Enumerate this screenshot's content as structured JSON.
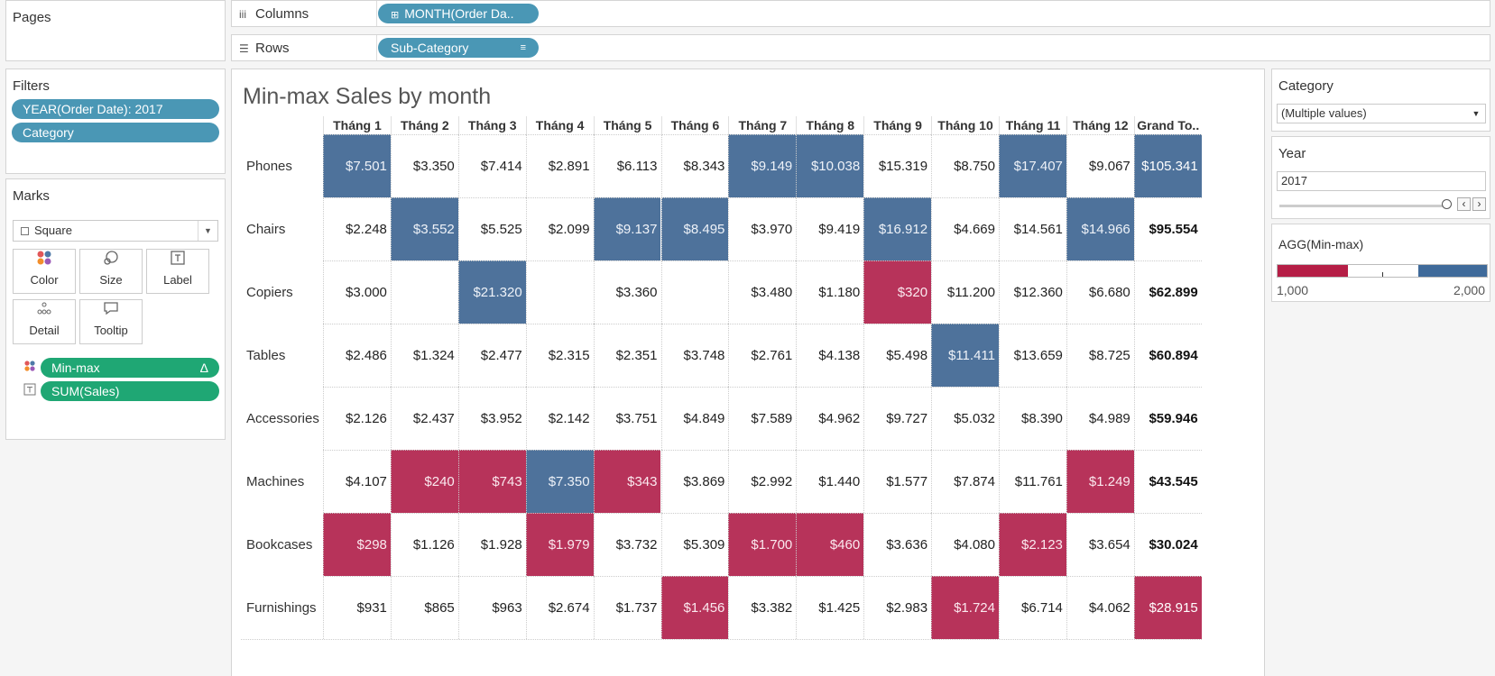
{
  "pages": {
    "title": "Pages"
  },
  "filters": {
    "title": "Filters",
    "pills": [
      "YEAR(Order Date): 2017",
      "Category"
    ]
  },
  "marks": {
    "title": "Marks",
    "mark_type": "Square",
    "buttons": {
      "color": "Color",
      "size": "Size",
      "label": "Label",
      "detail": "Detail",
      "tooltip": "Tooltip"
    },
    "fields": [
      "Min-max",
      "SUM(Sales)"
    ],
    "delta": "Δ"
  },
  "shelves": {
    "columns_label": "Columns",
    "columns_pill": "MONTH(Order Da..",
    "rows_label": "Rows",
    "rows_pill": "Sub-Category"
  },
  "view": {
    "title": "Min-max Sales by month",
    "columns": [
      "Tháng 1",
      "Tháng 2",
      "Tháng 3",
      "Tháng 4",
      "Tháng 5",
      "Tháng 6",
      "Tháng 7",
      "Tháng 8",
      "Tháng 9",
      "Tháng 10",
      "Tháng 11",
      "Tháng 12",
      "Grand To.."
    ],
    "rows": [
      {
        "label": "Phones",
        "values": [
          "$7.501",
          "$3.350",
          "$7.414",
          "$2.891",
          "$6.113",
          "$8.343",
          "$9.149",
          "$10.038",
          "$15.319",
          "$8.750",
          "$17.407",
          "$9.067",
          "$105.341"
        ],
        "status": [
          "max",
          "",
          "",
          "",
          "",
          "",
          "max",
          "max",
          "",
          "",
          "max",
          "",
          "max"
        ]
      },
      {
        "label": "Chairs",
        "values": [
          "$2.248",
          "$3.552",
          "$5.525",
          "$2.099",
          "$9.137",
          "$8.495",
          "$3.970",
          "$9.419",
          "$16.912",
          "$4.669",
          "$14.561",
          "$14.966",
          "$95.554"
        ],
        "status": [
          "",
          "max",
          "",
          "",
          "max",
          "max",
          "",
          "",
          "max",
          "",
          "",
          "max",
          ""
        ]
      },
      {
        "label": "Copiers",
        "values": [
          "$3.000",
          "",
          "$21.320",
          "",
          "$3.360",
          "",
          "$3.480",
          "$1.180",
          "$320",
          "$11.200",
          "$12.360",
          "$6.680",
          "$62.899"
        ],
        "status": [
          "",
          "",
          "max",
          "",
          "",
          "",
          "",
          "",
          "min",
          "",
          "",
          "",
          ""
        ]
      },
      {
        "label": "Tables",
        "values": [
          "$2.486",
          "$1.324",
          "$2.477",
          "$2.315",
          "$2.351",
          "$3.748",
          "$2.761",
          "$4.138",
          "$5.498",
          "$11.411",
          "$13.659",
          "$8.725",
          "$60.894"
        ],
        "status": [
          "",
          "",
          "",
          "",
          "",
          "",
          "",
          "",
          "",
          "max",
          "",
          "",
          ""
        ]
      },
      {
        "label": "Accessories",
        "values": [
          "$2.126",
          "$2.437",
          "$3.952",
          "$2.142",
          "$3.751",
          "$4.849",
          "$7.589",
          "$4.962",
          "$9.727",
          "$5.032",
          "$8.390",
          "$4.989",
          "$59.946"
        ],
        "status": [
          "",
          "",
          "",
          "",
          "",
          "",
          "",
          "",
          "",
          "",
          "",
          "",
          ""
        ]
      },
      {
        "label": "Machines",
        "values": [
          "$4.107",
          "$240",
          "$743",
          "$7.350",
          "$343",
          "$3.869",
          "$2.992",
          "$1.440",
          "$1.577",
          "$7.874",
          "$11.761",
          "$1.249",
          "$43.545"
        ],
        "status": [
          "",
          "min",
          "min",
          "max",
          "min",
          "",
          "",
          "",
          "",
          "",
          "",
          "min",
          ""
        ]
      },
      {
        "label": "Bookcases",
        "values": [
          "$298",
          "$1.126",
          "$1.928",
          "$1.979",
          "$3.732",
          "$5.309",
          "$1.700",
          "$460",
          "$3.636",
          "$4.080",
          "$2.123",
          "$3.654",
          "$30.024"
        ],
        "status": [
          "min",
          "",
          "",
          "min",
          "",
          "",
          "min",
          "min",
          "",
          "",
          "min",
          "",
          ""
        ]
      },
      {
        "label": "Furnishings",
        "values": [
          "$931",
          "$865",
          "$963",
          "$2.674",
          "$1.737",
          "$1.456",
          "$3.382",
          "$1.425",
          "$2.983",
          "$1.724",
          "$6.714",
          "$4.062",
          "$28.915"
        ],
        "status": [
          "",
          "",
          "",
          "",
          "",
          "min",
          "",
          "",
          "",
          "min",
          "",
          "",
          "min"
        ]
      }
    ]
  },
  "category_filter": {
    "title": "Category",
    "value": "(Multiple values)"
  },
  "year_filter": {
    "title": "Year",
    "value": "2017"
  },
  "legend": {
    "title": "AGG(Min-max)",
    "low": "1,000",
    "high": "2,000",
    "min_color": "#b51e46",
    "max_color": "#3f6a9a"
  },
  "colors": {
    "max_cell": "#4e729b",
    "min_cell": "#b7335a",
    "pill_blue": "#4a97b5",
    "pill_green": "#1fa774"
  }
}
